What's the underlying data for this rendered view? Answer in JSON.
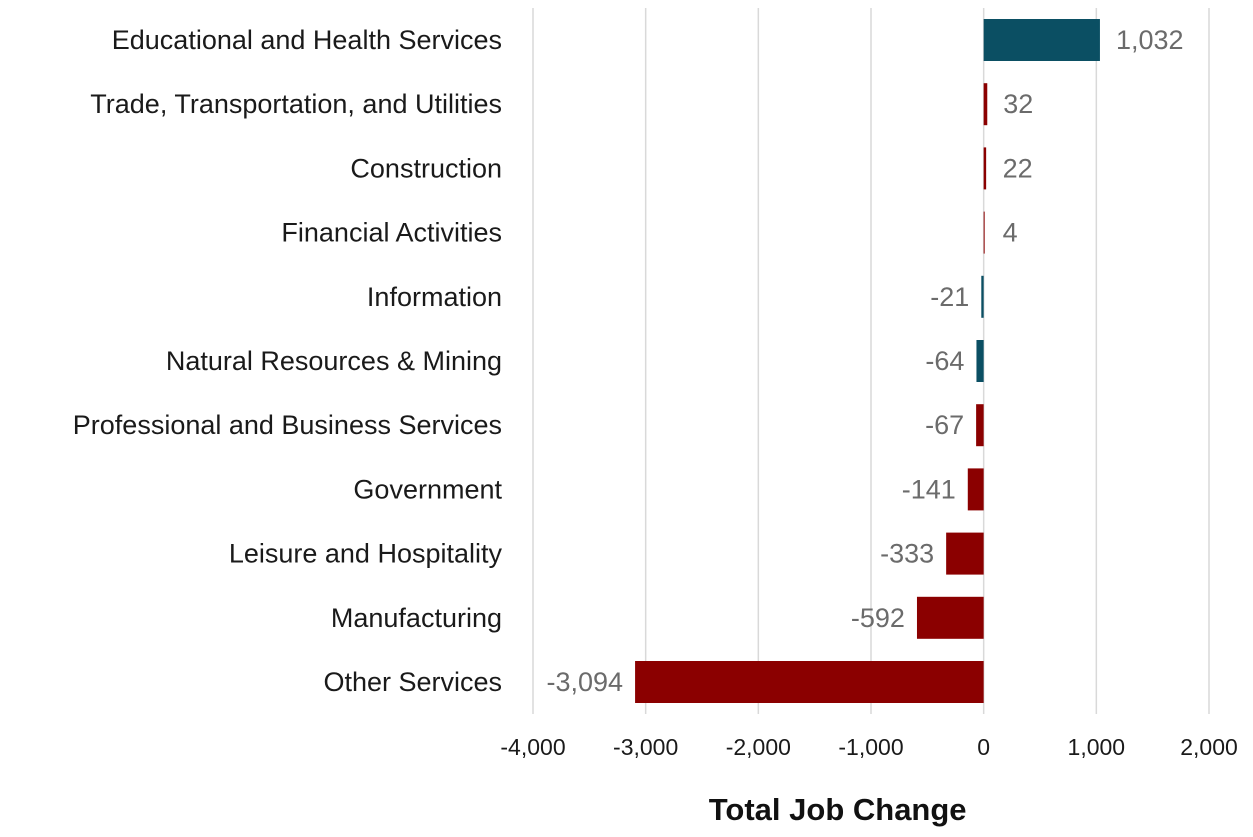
{
  "chart_data": {
    "type": "bar",
    "orientation": "horizontal",
    "categories": [
      "Educational and Health Services",
      "Trade, Transportation, and Utilities",
      "Construction",
      "Financial Activities",
      "Information",
      "Natural Resources & Mining",
      "Professional and Business Services",
      "Government",
      "Leisure and Hospitality",
      "Manufacturing",
      "Other Services"
    ],
    "values": [
      1032,
      32,
      22,
      4,
      -21,
      -64,
      -67,
      -141,
      -333,
      -592,
      -3094
    ],
    "value_labels": [
      "1,032",
      "32",
      "22",
      "4",
      "-21",
      "-64",
      "-67",
      "-141",
      "-333",
      "-592",
      "-3,094"
    ],
    "bar_colors": [
      "#0b4f63",
      "#8b0000",
      "#8b0000",
      "#8b0000",
      "#0b4f63",
      "#0b4f63",
      "#8b0000",
      "#8b0000",
      "#8b0000",
      "#8b0000",
      "#8b0000"
    ],
    "xlabel": "Total Job Change",
    "ylabel": "",
    "title": "",
    "xlim": [
      -4000,
      2000
    ],
    "xticks": [
      -4000,
      -3000,
      -2000,
      -1000,
      0,
      1000,
      2000
    ],
    "xtick_labels": [
      "-4,000",
      "-3,000",
      "-2,000",
      "-1,000",
      "0",
      "1,000",
      "2,000"
    ],
    "grid": "vertical",
    "legend": "none"
  }
}
